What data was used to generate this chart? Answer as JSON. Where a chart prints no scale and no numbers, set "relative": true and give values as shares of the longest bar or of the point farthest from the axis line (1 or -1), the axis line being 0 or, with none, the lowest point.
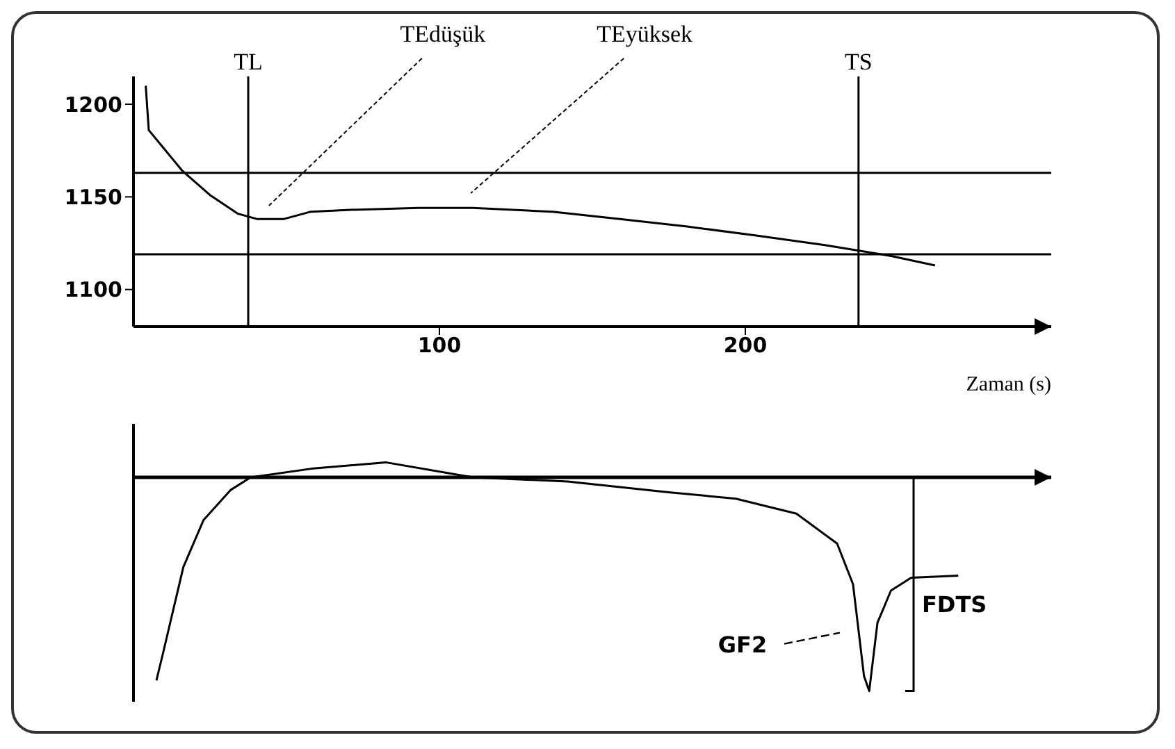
{
  "chart_data": [
    {
      "type": "line",
      "xlabel": "Zaman (s)",
      "x": [
        4,
        5,
        10,
        16,
        25,
        34,
        40.5,
        49,
        58,
        71,
        93,
        111,
        137,
        159,
        181,
        204,
        226,
        248,
        262
      ],
      "series": [
        {
          "color": "#000000",
          "values": [
            1210,
            1186,
            1176,
            1164,
            1151,
            1141,
            1138,
            1138,
            1142,
            1143,
            1144,
            1144,
            1142,
            1138,
            1134,
            1129,
            1124,
            1118,
            1113
          ]
        }
      ],
      "xlim": [
        0,
        300
      ],
      "xticks": [
        100,
        200
      ],
      "ylim": [
        1080,
        1215
      ],
      "yticks": [
        1100,
        1150,
        1200
      ],
      "grid": false,
      "legend": false,
      "marker": "none",
      "line_style": "solid",
      "ref_lines": [
        {
          "axis": "y",
          "value": 1163,
          "color": "#000000"
        },
        {
          "axis": "y",
          "value": 1119,
          "color": "#000000"
        },
        {
          "axis": "x",
          "value": 37.5,
          "label": "TL",
          "color": "#000000"
        },
        {
          "axis": "x",
          "value": 237,
          "label": "TS",
          "color": "#000000"
        }
      ],
      "annotations": [
        "TEdüşük",
        "TEyüksek"
      ]
    },
    {
      "type": "line",
      "relative": true,
      "x": [
        7.5,
        9.7,
        16.3,
        22.9,
        31.7,
        38.3,
        58.1,
        82.4,
        106.6,
        111,
        141.9,
        174.9,
        196.9,
        216.7,
        230,
        235.2,
        238.8,
        240.5,
        243.2,
        247.6,
        254.2,
        269.6
      ],
      "series": [
        {
          "color": "#000000",
          "values": [
            -0.95,
            -0.82,
            -0.42,
            -0.2,
            -0.06,
            0,
            0.04,
            0.07,
            0.01,
            0,
            -0.02,
            -0.07,
            -0.1,
            -0.17,
            -0.31,
            -0.5,
            -0.93,
            -1,
            -0.68,
            -0.53,
            -0.47,
            -0.46
          ]
        }
      ],
      "xlim": [
        0,
        300
      ],
      "grid": false,
      "legend": false,
      "marker": "none",
      "line_style": "solid",
      "annotations": [
        "GF2",
        "FDTS"
      ]
    }
  ]
}
